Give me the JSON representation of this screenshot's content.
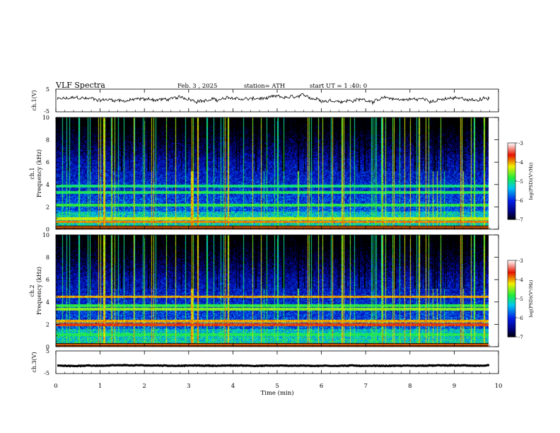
{
  "header": {
    "title": "VLF Spectra",
    "date": "Feb. 3 , 2025",
    "station": "station= ATH",
    "start": "start UT =  1 :40: 0"
  },
  "chart_data": [
    {
      "type": "line",
      "name": "ch1-waveform",
      "ylabel": "ch.1(V)",
      "ylim": [
        -5,
        5
      ],
      "yticks": [
        "5",
        "-5"
      ],
      "xlim": [
        0,
        10
      ],
      "level": 0.5,
      "noise_amplitude": 1.3,
      "end_minute": 9.8
    },
    {
      "type": "heatmap",
      "name": "ch1-spectrogram",
      "ylabel": "ch.1\nFrequency (kHz)",
      "ylim": [
        0,
        10
      ],
      "yticks": [
        "0",
        "2",
        "4",
        "6",
        "8",
        "10"
      ],
      "xlim": [
        0,
        10
      ],
      "colorbar": {
        "label": "log(PSD)(V²/Hz)",
        "ticks": [
          "-3",
          "-4",
          "-5",
          "-6",
          "-7"
        ],
        "range": [
          -7,
          -3
        ]
      },
      "bands": [
        {
          "f": 0.7,
          "v": -3.9
        },
        {
          "f": 1.0,
          "v": -4.3
        },
        {
          "f": 2.2,
          "v": -4.8
        },
        {
          "f": 3.3,
          "v": -4.9
        },
        {
          "f": 3.9,
          "v": -5.0
        }
      ],
      "end_minute": 9.8
    },
    {
      "type": "heatmap",
      "name": "ch2-spectrogram",
      "ylabel": "ch.2\nFrequency (kHz)",
      "ylim": [
        0,
        10
      ],
      "yticks": [
        "0",
        "2",
        "4",
        "6",
        "8",
        "10"
      ],
      "xlim": [
        0,
        10
      ],
      "colorbar": {
        "label": "log(PSD)(V²/Hz)",
        "ticks": [
          "-3",
          "-4",
          "-5",
          "-6",
          "-7"
        ],
        "range": [
          -7,
          -3
        ]
      },
      "bands": [
        {
          "f": 2.0,
          "v": -3.7
        },
        {
          "f": 2.3,
          "v": -4.0
        },
        {
          "f": 3.4,
          "v": -4.5
        },
        {
          "f": 3.7,
          "v": -4.8
        },
        {
          "f": 4.5,
          "v": -4.0
        },
        {
          "f": 1.1,
          "v": -4.9
        }
      ],
      "end_minute": 9.8
    },
    {
      "type": "line",
      "name": "ch3-waveform",
      "ylabel": "ch.3(V)",
      "ylim": [
        -5,
        5
      ],
      "yticks": [
        "5",
        "-5"
      ],
      "xlim": [
        0,
        10
      ],
      "level": -1.5,
      "noise_amplitude": 0.25,
      "end_minute": 9.8
    }
  ],
  "xaxis": {
    "label": "Time (min)",
    "ticks": [
      "0",
      "1",
      "2",
      "3",
      "4",
      "5",
      "6",
      "7",
      "8",
      "9",
      "10"
    ]
  }
}
